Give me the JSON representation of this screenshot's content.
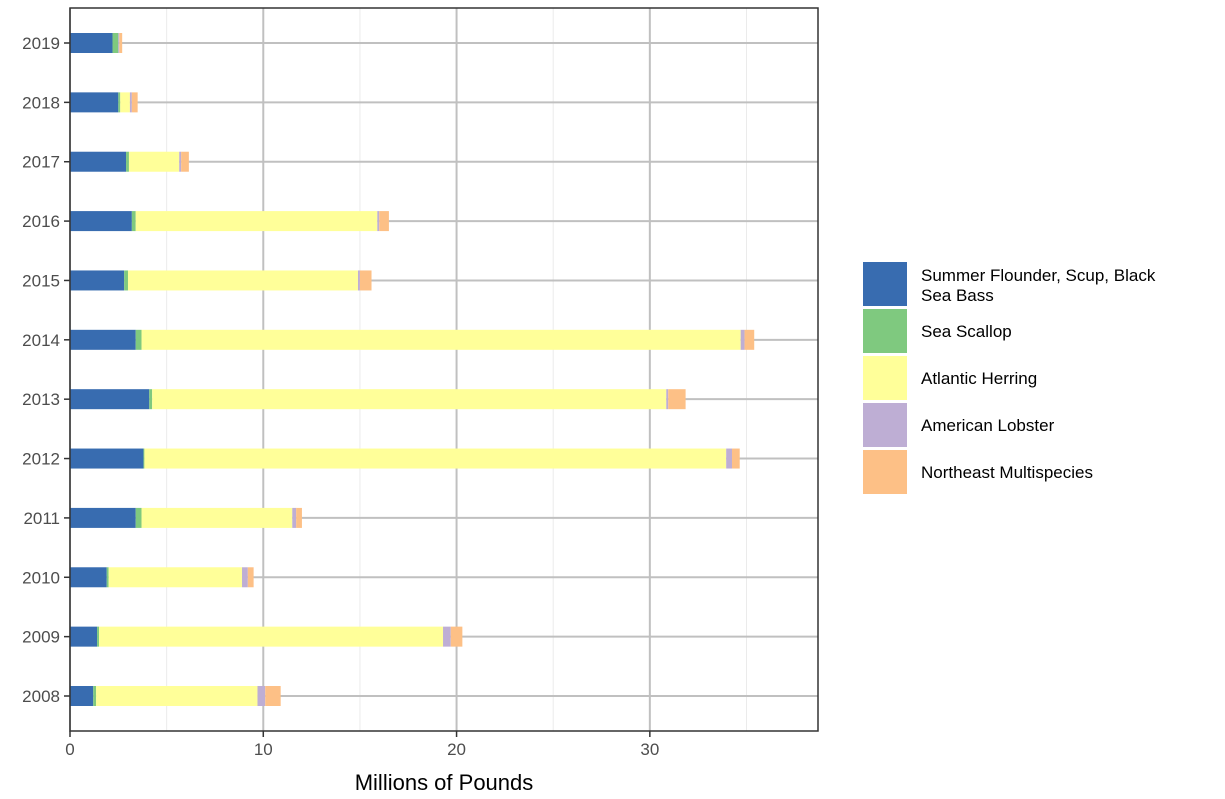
{
  "chart_data": {
    "type": "bar",
    "orientation": "horizontal",
    "stacked": true,
    "title": "",
    "xlabel": "Millions of Pounds",
    "ylabel": "",
    "xlim": [
      0,
      38.7
    ],
    "x_ticks": [
      0,
      10,
      20,
      30
    ],
    "grid": true,
    "legend_position": "right",
    "categories": [
      "2008",
      "2009",
      "2010",
      "2011",
      "2012",
      "2013",
      "2014",
      "2015",
      "2016",
      "2017",
      "2018",
      "2019"
    ],
    "series": [
      {
        "name": "Summer Flounder, Scup, Black Sea Bass",
        "color": "#386cb0",
        "values": [
          1.2,
          1.4,
          1.9,
          3.4,
          3.8,
          4.1,
          3.4,
          2.8,
          3.2,
          2.9,
          2.5,
          2.2
        ]
      },
      {
        "name": "Sea Scallop",
        "color": "#7fc97f",
        "values": [
          0.15,
          0.1,
          0.1,
          0.3,
          0.05,
          0.15,
          0.3,
          0.2,
          0.2,
          0.15,
          0.1,
          0.3
        ]
      },
      {
        "name": "Atlantic Herring",
        "color": "#ffff99",
        "values": [
          8.35,
          17.8,
          6.9,
          7.8,
          30.1,
          26.6,
          31.0,
          11.9,
          12.5,
          2.6,
          0.5,
          0.0
        ]
      },
      {
        "name": "American Lobster",
        "color": "#beaed4",
        "values": [
          0.4,
          0.4,
          0.3,
          0.2,
          0.3,
          0.1,
          0.2,
          0.1,
          0.1,
          0.1,
          0.1,
          0.05
        ]
      },
      {
        "name": "Northeast Multispecies",
        "color": "#fdc086",
        "values": [
          0.8,
          0.6,
          0.3,
          0.3,
          0.4,
          0.9,
          0.5,
          0.6,
          0.5,
          0.4,
          0.3,
          0.15
        ]
      }
    ]
  }
}
